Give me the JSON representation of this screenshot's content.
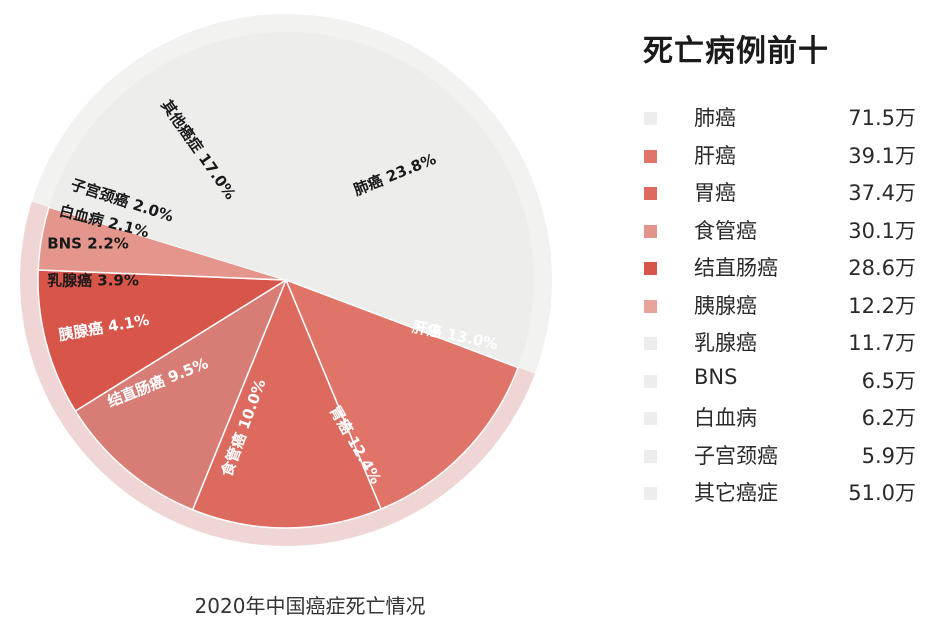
{
  "chart_data": {
    "type": "pie",
    "title": "死亡病例前十",
    "caption": "2020年中国癌症死亡情况",
    "slices": [
      {
        "label": "肺癌",
        "percent": 23.8,
        "percent_label": "肺癌 23.8%",
        "value_label": "71.5万",
        "value": 71.5,
        "color": "#ededec",
        "text_color": "#1a1a1a",
        "swatch": "#ededec"
      },
      {
        "label": "肝癌",
        "percent": 13.0,
        "percent_label": "肝癌 13.0%",
        "value_label": "39.1万",
        "value": 39.1,
        "color": "#e07468",
        "text_color": "#ffffff",
        "swatch": "#e07468"
      },
      {
        "label": "胃癌",
        "percent": 12.4,
        "percent_label": "胃癌 12.4%",
        "value_label": "37.4万",
        "value": 37.4,
        "color": "#dc6a5f",
        "text_color": "#ffffff",
        "swatch": "#dc6a5f"
      },
      {
        "label": "食管癌",
        "percent": 10.0,
        "percent_label": "食管癌 10.0%",
        "value_label": "30.1万",
        "value": 30.1,
        "color": "#d77d75",
        "text_color": "#ffffff",
        "swatch": "#e3938a"
      },
      {
        "label": "结直肠癌",
        "percent": 9.5,
        "percent_label": "结直肠癌 9.5%",
        "value_label": "28.6万",
        "value": 28.6,
        "color": "#d8554a",
        "text_color": "#ffffff",
        "swatch": "#d8554a"
      },
      {
        "label": "胰腺癌",
        "percent": 4.1,
        "percent_label": "胰腺癌 4.1%",
        "value_label": "12.2万",
        "value": 12.2,
        "color": "#e4968d",
        "text_color": "#ffffff",
        "swatch": "#e8a39b"
      },
      {
        "label": "乳腺癌",
        "percent": 3.9,
        "percent_label": "乳腺癌 3.9%",
        "value_label": "11.7万",
        "value": 11.7,
        "color": "#ededec",
        "text_color": "#1a1a1a",
        "swatch": "#ededec"
      },
      {
        "label": "BNS",
        "percent": 2.2,
        "percent_label": "BNS 2.2%",
        "value_label": "6.5万",
        "value": 6.5,
        "color": "#ededec",
        "text_color": "#1a1a1a",
        "swatch": "#ededec"
      },
      {
        "label": "白血病",
        "percent": 2.1,
        "percent_label": "白血病 2.1%",
        "value_label": "6.2万",
        "value": 6.2,
        "color": "#ededec",
        "text_color": "#1a1a1a",
        "swatch": "#ededec"
      },
      {
        "label": "子宫颈癌",
        "percent": 2.0,
        "percent_label": "子宫颈癌 2.0%",
        "value_label": "5.9万",
        "value": 5.9,
        "color": "#ededec",
        "text_color": "#1a1a1a",
        "swatch": "#ededec"
      },
      {
        "label": "其它癌症",
        "percent": 17.0,
        "percent_label": "其他癌症 17.0%",
        "value_label": "51.0万",
        "value": 51.0,
        "color": "#ededec",
        "text_color": "#1a1a1a",
        "swatch": "#ededec"
      }
    ]
  }
}
